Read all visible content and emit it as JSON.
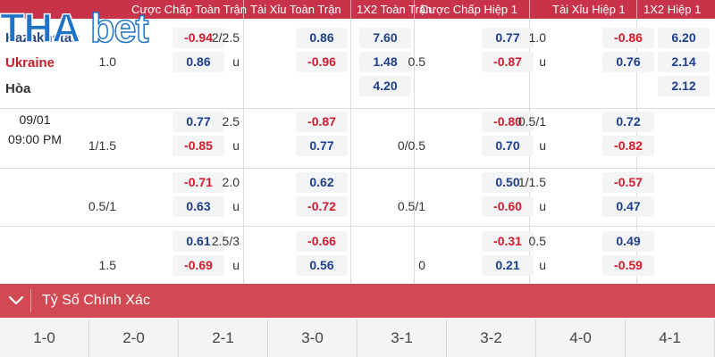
{
  "logo": {
    "part1": "THA",
    "part2": "bet"
  },
  "headers": {
    "ft_handicap": "Cược Chấp Toàn Trận",
    "ft_over_under": "Tài Xỉu Toàn Trận",
    "ft_1x2": "1X2 Toàn Trận",
    "h1_handicap": "Cược Chấp Hiệp 1",
    "h1_over_under": "Tài Xỉu Hiệp 1",
    "h1_1x2": "1X2 Hiệp 1"
  },
  "match": {
    "home": "Kazakhstan",
    "away": "Ukraine",
    "draw": "Hòa",
    "date": "09/01",
    "time": "09:00 PM"
  },
  "rows": [
    {
      "ft_hdp_line": "1.0",
      "ft_hdp_home": "-0.94",
      "ft_hdp_away": "0.86",
      "ft_ou_line": "2/2.5",
      "ft_ou_u": "u",
      "ft_ou_over": "0.86",
      "ft_ou_under": "-0.96",
      "ft_1x2_home": "7.60",
      "ft_1x2_away": "1.48",
      "ft_1x2_draw": "4.20",
      "h1_hdp_line": "0.5",
      "h1_hdp_home": "0.77",
      "h1_hdp_away": "-0.87",
      "h1_ou_line": "1.0",
      "h1_ou_u": "u",
      "h1_ou_over": "-0.86",
      "h1_ou_under": "0.76",
      "h1_1x2_home": "6.20",
      "h1_1x2_away": "2.14",
      "h1_1x2_draw": "2.12"
    },
    {
      "ft_hdp_line": "1/1.5",
      "ft_hdp_home": "0.77",
      "ft_hdp_away": "-0.85",
      "ft_ou_line": "2.5",
      "ft_ou_u": "u",
      "ft_ou_over": "-0.87",
      "ft_ou_under": "0.77",
      "h1_hdp_line": "0/0.5",
      "h1_hdp_home": "-0.80",
      "h1_hdp_away": "0.70",
      "h1_ou_line": "0.5/1",
      "h1_ou_u": "u",
      "h1_ou_over": "0.72",
      "h1_ou_under": "-0.82"
    },
    {
      "ft_hdp_line": "0.5/1",
      "ft_hdp_home": "-0.71",
      "ft_hdp_away": "0.63",
      "ft_ou_line": "2.0",
      "ft_ou_u": "u",
      "ft_ou_over": "0.62",
      "ft_ou_under": "-0.72",
      "h1_hdp_line": "0.5/1",
      "h1_hdp_home": "0.50",
      "h1_hdp_away": "-0.60",
      "h1_ou_line": "1/1.5",
      "h1_ou_u": "u",
      "h1_ou_over": "-0.57",
      "h1_ou_under": "0.47"
    },
    {
      "ft_hdp_line": "1.5",
      "ft_hdp_home": "0.61",
      "ft_hdp_away": "-0.69",
      "ft_ou_line": "2.5/3",
      "ft_ou_u": "u",
      "ft_ou_over": "-0.66",
      "ft_ou_under": "0.56",
      "h1_hdp_line": "0",
      "h1_hdp_home": "-0.31",
      "h1_hdp_away": "0.21",
      "h1_ou_line": "0.5",
      "h1_ou_u": "u",
      "h1_ou_over": "0.49",
      "h1_ou_under": "-0.59"
    }
  ],
  "section": {
    "title": "Tỷ Số Chính Xác",
    "icon": "chevron-down-icon"
  },
  "scores": [
    "1-0",
    "2-0",
    "2-1",
    "3-0",
    "3-1",
    "3-2",
    "4-0",
    "4-1"
  ],
  "colors": {
    "header": "#c8334a",
    "bar": "#d14a53",
    "positive": "#1f3f8c",
    "negative": "#d21b2b",
    "logo_blue": "#1e73c8"
  }
}
